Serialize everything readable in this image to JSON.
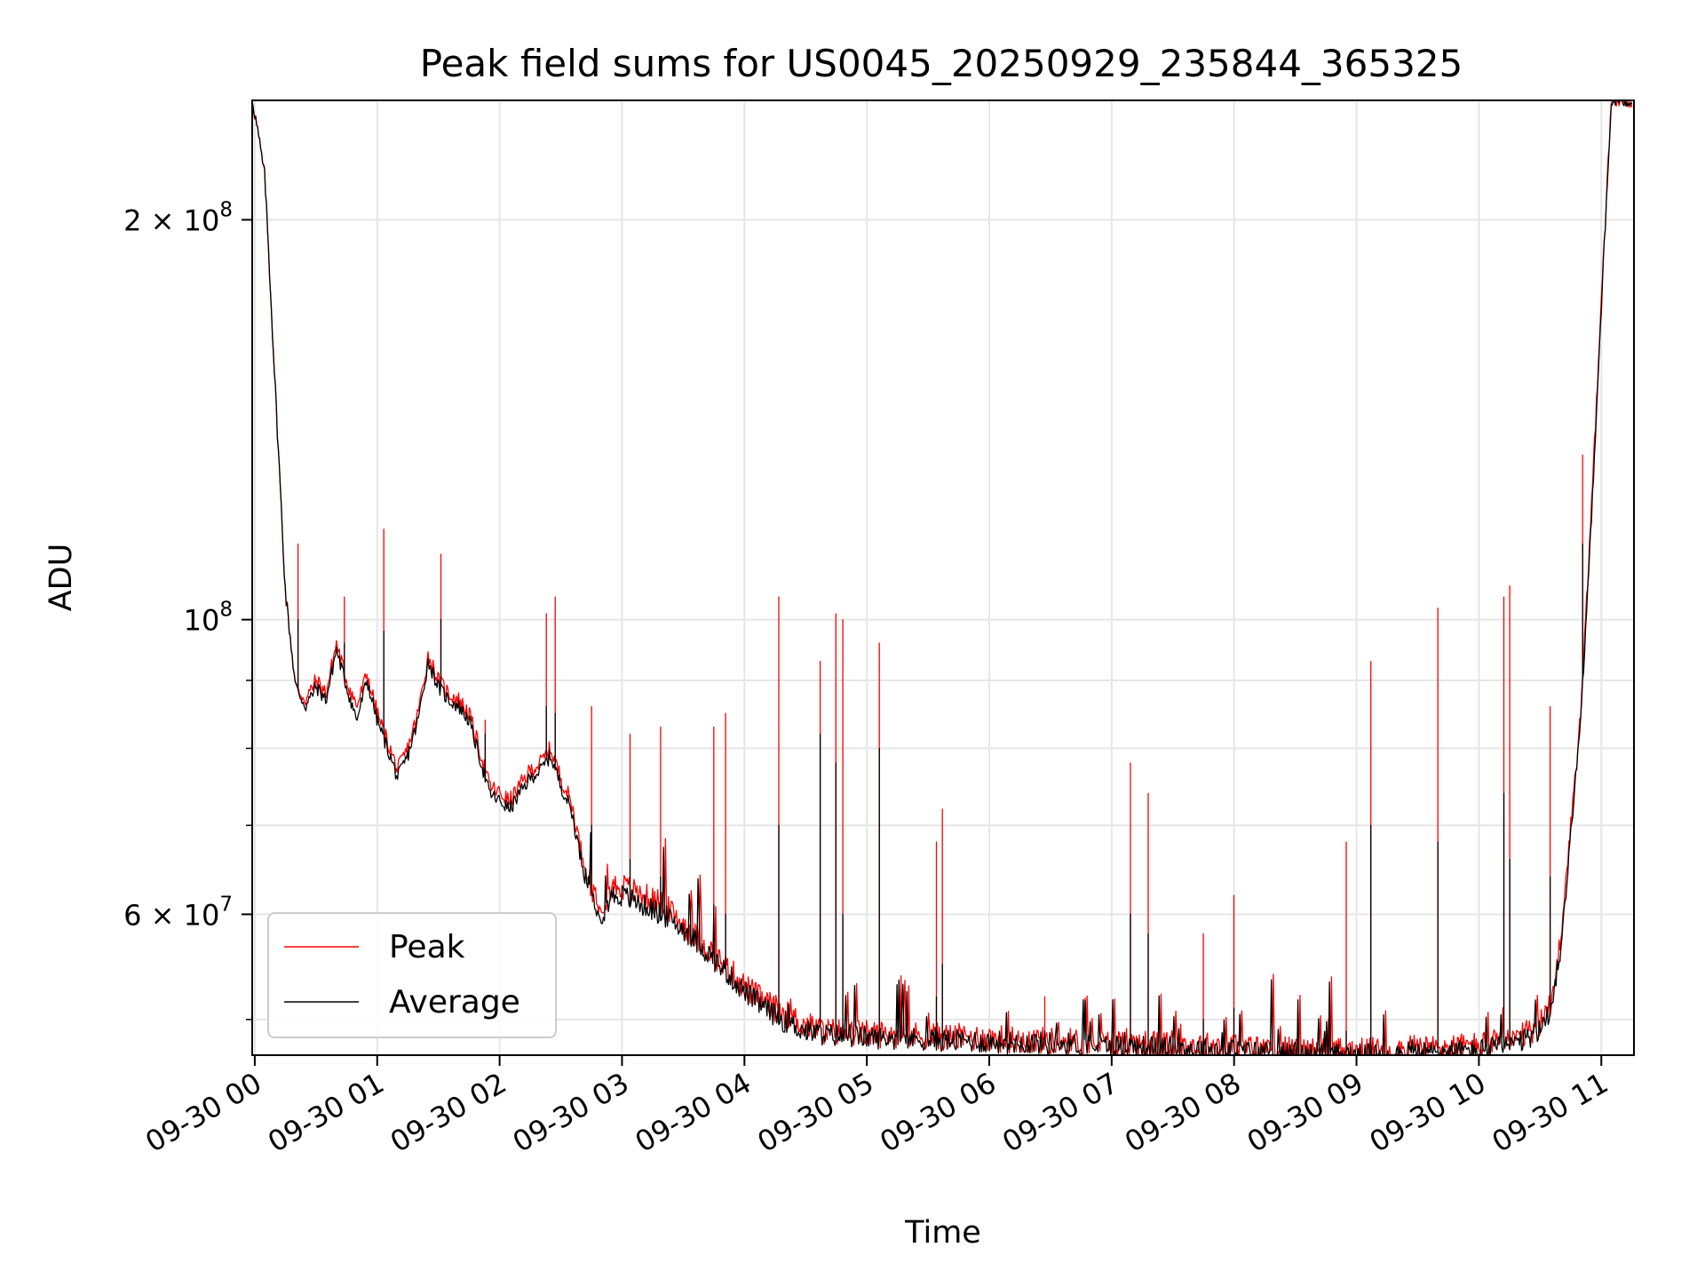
{
  "chart_data": {
    "type": "line",
    "title": "Peak field sums for US0045_20250929_235844_365325",
    "xlabel": "Time",
    "ylabel": "ADU",
    "y_scale": "log",
    "ylim": [
      47000000,
      246000000
    ],
    "xlim": [
      "2025-09-29 23:58:44",
      "2025-09-30 11:16:00"
    ],
    "grid": true,
    "legend_position": "lower-left",
    "x_ticks": [
      "09-30 00",
      "09-30 01",
      "09-30 02",
      "09-30 03",
      "09-30 04",
      "09-30 05",
      "09-30 06",
      "09-30 07",
      "09-30 08",
      "09-30 09",
      "09-30 10",
      "09-30 11"
    ],
    "y_ticks": [
      {
        "value": 200000000,
        "mantissa": "2",
        "exponent": "8"
      },
      {
        "value": 100000000,
        "mantissa": "",
        "exponent": "8"
      },
      {
        "value": 60000000,
        "mantissa": "6",
        "exponent": "7"
      }
    ],
    "x": [
      "2025-09-29 23:59",
      "2025-09-30 00:05",
      "2025-09-30 00:10",
      "2025-09-30 00:15",
      "2025-09-30 00:20",
      "2025-09-30 00:25",
      "2025-09-30 00:30",
      "2025-09-30 00:35",
      "2025-09-30 00:40",
      "2025-09-30 00:45",
      "2025-09-30 00:50",
      "2025-09-30 00:55",
      "2025-09-30 01:00",
      "2025-09-30 01:05",
      "2025-09-30 01:10",
      "2025-09-30 01:15",
      "2025-09-30 01:20",
      "2025-09-30 01:25",
      "2025-09-30 01:30",
      "2025-09-30 01:35",
      "2025-09-30 01:40",
      "2025-09-30 01:45",
      "2025-09-30 01:50",
      "2025-09-30 01:55",
      "2025-09-30 02:00",
      "2025-09-30 02:05",
      "2025-09-30 02:10",
      "2025-09-30 02:15",
      "2025-09-30 02:20",
      "2025-09-30 02:25",
      "2025-09-30 02:30",
      "2025-09-30 02:35",
      "2025-09-30 02:40",
      "2025-09-30 02:45",
      "2025-09-30 02:50",
      "2025-09-30 02:55",
      "2025-09-30 03:00",
      "2025-09-30 03:10",
      "2025-09-30 03:20",
      "2025-09-30 03:30",
      "2025-09-30 03:40",
      "2025-09-30 03:50",
      "2025-09-30 04:00",
      "2025-09-30 04:10",
      "2025-09-30 04:20",
      "2025-09-30 04:30",
      "2025-09-30 04:40",
      "2025-09-30 04:50",
      "2025-09-30 05:00",
      "2025-09-30 05:30",
      "2025-09-30 06:00",
      "2025-09-30 06:30",
      "2025-09-30 07:00",
      "2025-09-30 07:30",
      "2025-09-30 08:00",
      "2025-09-30 08:30",
      "2025-09-30 09:00",
      "2025-09-30 09:30",
      "2025-09-30 10:00",
      "2025-09-30 10:20",
      "2025-09-30 10:30",
      "2025-09-30 10:35",
      "2025-09-30 10:40",
      "2025-09-30 10:45",
      "2025-09-30 10:50",
      "2025-09-30 10:55",
      "2025-09-30 11:00",
      "2025-09-30 11:05",
      "2025-09-30 11:10",
      "2025-09-30 11:15"
    ],
    "series": [
      {
        "name": "Peak",
        "color": "#ff0000",
        "values": [
          246000000,
          215000000,
          150000000,
          105000000,
          89000000,
          87000000,
          90000000,
          88000000,
          96000000,
          90000000,
          86000000,
          91000000,
          85000000,
          81000000,
          77000000,
          80000000,
          85000000,
          94000000,
          90000000,
          88000000,
          87000000,
          85000000,
          80000000,
          75000000,
          74000000,
          73000000,
          75000000,
          77000000,
          78000000,
          80000000,
          76000000,
          73000000,
          67000000,
          63000000,
          61000000,
          63000000,
          63000000,
          62000000,
          61000000,
          59000000,
          57000000,
          55000000,
          53000000,
          51500000,
          50500000,
          49500000,
          49000000,
          48900000,
          48800000,
          48600000,
          48400000,
          48200000,
          48000000,
          47900000,
          47700000,
          47400000,
          47300000,
          47500000,
          47800000,
          48400000,
          49500000,
          51500000,
          57000000,
          70000000,
          85000000,
          120000000,
          175000000,
          246000000,
          246000000,
          246000000
        ]
      },
      {
        "name": "Average",
        "color": "#000000",
        "values": [
          246000000,
          215000000,
          150000000,
          105000000,
          89000000,
          86000000,
          89000000,
          87000000,
          95000000,
          89000000,
          84000000,
          90000000,
          84000000,
          80000000,
          76000000,
          79000000,
          84000000,
          93000000,
          89000000,
          87000000,
          86000000,
          84000000,
          79000000,
          74000000,
          73000000,
          72000000,
          74000000,
          76000000,
          77000000,
          79000000,
          75000000,
          72000000,
          66000000,
          62000000,
          60000000,
          62000000,
          62000000,
          61000000,
          60000000,
          58500000,
          56500000,
          54500000,
          52500000,
          51000000,
          49800000,
          49000000,
          48700000,
          48600000,
          48500000,
          48300000,
          48100000,
          48000000,
          47800000,
          47600000,
          47400000,
          47100000,
          47000000,
          47200000,
          47400000,
          48000000,
          49000000,
          51000000,
          56000000,
          69000000,
          84000000,
          118000000,
          172000000,
          246000000,
          246000000,
          246000000
        ]
      }
    ],
    "spikes": [
      {
        "time": "2025-09-30 00:21",
        "peak": 114000000,
        "average": 100000000
      },
      {
        "time": "2025-09-30 00:44",
        "peak": 104000000,
        "average": 96000000
      },
      {
        "time": "2025-09-30 01:03",
        "peak": 117000000,
        "average": 98000000
      },
      {
        "time": "2025-09-30 01:31",
        "peak": 112000000,
        "average": 100000000
      },
      {
        "time": "2025-09-30 01:53",
        "peak": 84000000,
        "average": 82000000
      },
      {
        "time": "2025-09-30 02:23",
        "peak": 101000000,
        "average": 86000000
      },
      {
        "time": "2025-09-30 02:27",
        "peak": 104000000,
        "average": 85000000
      },
      {
        "time": "2025-09-30 02:45",
        "peak": 86000000,
        "average": 70000000
      },
      {
        "time": "2025-09-30 03:04",
        "peak": 82000000,
        "average": 66000000
      },
      {
        "time": "2025-09-30 03:19",
        "peak": 83000000,
        "average": 64000000
      },
      {
        "time": "2025-09-30 03:45",
        "peak": 83000000,
        "average": 61000000
      },
      {
        "time": "2025-09-30 03:51",
        "peak": 85000000,
        "average": 60000000
      },
      {
        "time": "2025-09-30 04:17",
        "peak": 104000000,
        "average": 70000000
      },
      {
        "time": "2025-09-30 04:37",
        "peak": 93000000,
        "average": 82000000
      },
      {
        "time": "2025-09-30 04:45",
        "peak": 101000000,
        "average": 78000000
      },
      {
        "time": "2025-09-30 04:48",
        "peak": 100000000,
        "average": 60000000
      },
      {
        "time": "2025-09-30 05:06",
        "peak": 96000000,
        "average": 80000000
      },
      {
        "time": "2025-09-30 05:34",
        "peak": 68000000,
        "average": 52000000
      },
      {
        "time": "2025-09-30 05:37",
        "peak": 72000000,
        "average": 55000000
      },
      {
        "time": "2025-09-30 06:27",
        "peak": 52000000,
        "average": 49000000
      },
      {
        "time": "2025-09-30 07:09",
        "peak": 78000000,
        "average": 60000000
      },
      {
        "time": "2025-09-30 07:18",
        "peak": 74000000,
        "average": 58000000
      },
      {
        "time": "2025-09-30 07:45",
        "peak": 58000000,
        "average": 50000000
      },
      {
        "time": "2025-09-30 08:00",
        "peak": 62000000,
        "average": 51000000
      },
      {
        "time": "2025-09-30 08:55",
        "peak": 68000000,
        "average": 49000000
      },
      {
        "time": "2025-09-30 09:07",
        "peak": 93000000,
        "average": 70000000
      },
      {
        "time": "2025-09-30 09:40",
        "peak": 102000000,
        "average": 68000000
      },
      {
        "time": "2025-09-30 10:12",
        "peak": 104000000,
        "average": 74000000
      },
      {
        "time": "2025-09-30 10:15",
        "peak": 106000000,
        "average": 66000000
      },
      {
        "time": "2025-09-30 10:35",
        "peak": 86000000,
        "average": 64000000
      },
      {
        "time": "2025-09-30 10:51",
        "peak": 133000000,
        "average": 114000000
      }
    ]
  }
}
